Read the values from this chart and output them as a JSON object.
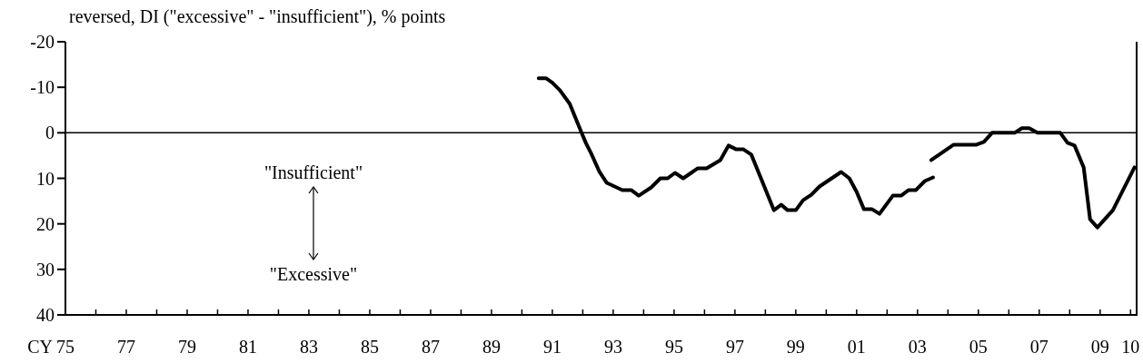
{
  "chart_data": {
    "type": "line",
    "ylabel": "reversed, DI (\"excessive\" - \"insufficient\"), % points",
    "xlabel": "CY",
    "xlim": [
      1975,
      2010.2
    ],
    "ylim": [
      40,
      -20
    ],
    "yticks": [
      -20,
      -10,
      0,
      10,
      20,
      30,
      40
    ],
    "xticks": [
      {
        "value": 1975,
        "label": "75"
      },
      {
        "value": 1976,
        "label": null
      },
      {
        "value": 1977,
        "label": "77"
      },
      {
        "value": 1978,
        "label": null
      },
      {
        "value": 1979,
        "label": "79"
      },
      {
        "value": 1980,
        "label": null
      },
      {
        "value": 1981,
        "label": "81"
      },
      {
        "value": 1982,
        "label": null
      },
      {
        "value": 1983,
        "label": "83"
      },
      {
        "value": 1984,
        "label": null
      },
      {
        "value": 1985,
        "label": "85"
      },
      {
        "value": 1986,
        "label": null
      },
      {
        "value": 1987,
        "label": "87"
      },
      {
        "value": 1988,
        "label": null
      },
      {
        "value": 1989,
        "label": "89"
      },
      {
        "value": 1990,
        "label": null
      },
      {
        "value": 1991,
        "label": "91"
      },
      {
        "value": 1992,
        "label": null
      },
      {
        "value": 1993,
        "label": "93"
      },
      {
        "value": 1994,
        "label": null
      },
      {
        "value": 1995,
        "label": "95"
      },
      {
        "value": 1996,
        "label": null
      },
      {
        "value": 1997,
        "label": "97"
      },
      {
        "value": 1998,
        "label": null
      },
      {
        "value": 1999,
        "label": "99"
      },
      {
        "value": 2000,
        "label": null
      },
      {
        "value": 2001,
        "label": "01"
      },
      {
        "value": 2002,
        "label": null
      },
      {
        "value": 2003,
        "label": "03"
      },
      {
        "value": 2004,
        "label": null
      },
      {
        "value": 2005,
        "label": "05"
      },
      {
        "value": 2006,
        "label": null
      },
      {
        "value": 2007,
        "label": "07"
      },
      {
        "value": 2008,
        "label": null
      },
      {
        "value": 2009,
        "label": "09"
      },
      {
        "value": 2010,
        "label": "10"
      }
    ],
    "grid": false,
    "line_style": "solid",
    "marker": "none",
    "ref_lines": [
      {
        "axis": "y",
        "value": 0,
        "color": "#000000"
      }
    ],
    "annotations": [
      "\"Insufficient\"",
      "\"Excessive\""
    ],
    "series": [
      {
        "color": "#000000",
        "x": [
          1990.55,
          1990.79,
          1991.0,
          1991.24,
          1991.57,
          1991.96,
          1992.1,
          1992.28,
          1992.55,
          1992.79,
          1993.3,
          1993.6,
          1993.84,
          1994.25,
          1994.55,
          1994.79,
          1995.03,
          1995.3,
          1995.78,
          1996.07,
          1996.52,
          1996.79,
          1997.03,
          1997.27,
          1997.54,
          1998.28,
          1998.52,
          1998.73,
          1999.0,
          1999.24,
          1999.51,
          1999.78,
          2000.49,
          2000.76,
          2001.0,
          2001.24,
          2001.51,
          2001.75,
          2002.19,
          2002.46,
          2002.7,
          2002.94,
          2003.24,
          2003.51
        ],
        "values": [
          -12,
          -12,
          -11,
          -9.4,
          -6.4,
          0,
          2.2,
          4.6,
          8.6,
          11,
          12.6,
          12.6,
          13.8,
          12,
          10,
          10,
          8.8,
          10,
          7.8,
          7.8,
          6,
          2.8,
          3.6,
          3.6,
          4.8,
          17,
          15.8,
          17,
          17,
          14.8,
          13.6,
          11.8,
          8.6,
          10,
          13,
          16.8,
          16.8,
          17.8,
          13.8,
          13.8,
          12.6,
          12.6,
          10.6,
          9.8
        ]
      },
      {
        "color": "#000000",
        "x": [
          2003.45,
          2004.19,
          2004.94,
          2005.18,
          2005.45,
          2006.19,
          2006.43,
          2006.67,
          2006.94,
          2007.69,
          2007.93,
          2008.16,
          2008.46,
          2008.67,
          2008.91,
          2009.42,
          2010.13
        ],
        "values": [
          6,
          2.6,
          2.6,
          2,
          0,
          0,
          -1,
          -1,
          0,
          0,
          2.2,
          2.8,
          7.6,
          19,
          20.8,
          17,
          7.6
        ]
      }
    ]
  }
}
